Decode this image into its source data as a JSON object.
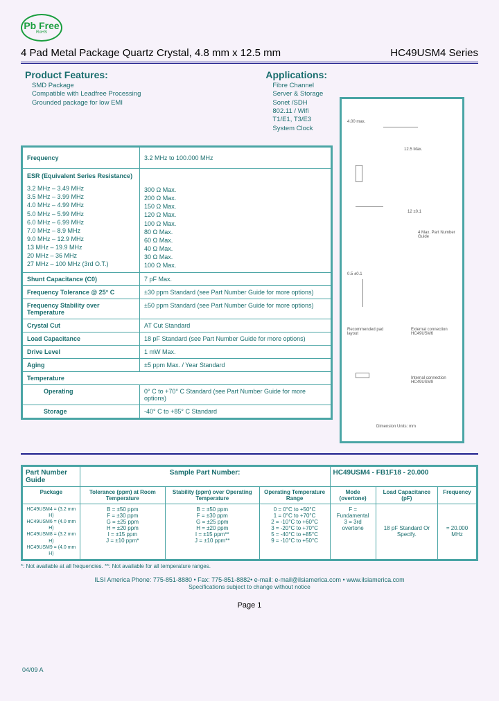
{
  "badge": {
    "line1": "Pb Free",
    "line2": "RoHS"
  },
  "header": {
    "title": "4 Pad Metal Package Quartz Crystal, 4.8 mm x 12.5 mm",
    "series": "HC49USM4 Series"
  },
  "features": {
    "heading": "Product Features:",
    "items": [
      "SMD Package",
      "Compatible with Leadfree Processing",
      "Grounded package for low EMI"
    ]
  },
  "applications": {
    "heading": "Applications:",
    "items": [
      "Fibre Channel",
      "Server & Storage",
      "Sonet /SDH",
      "802.11 / Wifi",
      "T1/E1, T3/E3",
      "System Clock"
    ]
  },
  "specs": {
    "frequency": {
      "label": "Frequency",
      "value": "3.2 MHz to 100.000 MHz"
    },
    "esr": {
      "label": "ESR (Equivalent Series Resistance)",
      "ranges": [
        "3.2 MHz – 3.49 MHz",
        "3.5 MHz – 3.99 MHz",
        "4.0 MHz – 4.99 MHz",
        "5.0 MHz – 5.99 MHz",
        "6.0 MHz – 6.99 MHz",
        "7.0 MHz – 8.9 MHz",
        "9.0 MHz – 12.9 MHz",
        "13 MHz – 19.9 MHz",
        "20 MHz – 36 MHz",
        "27 MHz – 100 MHz (3rd O.T.)"
      ],
      "values": [
        "300 Ω Max.",
        "200 Ω Max.",
        "150 Ω Max.",
        "120 Ω Max.",
        "100 Ω Max.",
        "80 Ω Max.",
        "60 Ω Max.",
        "40 Ω Max.",
        "30 Ω Max.",
        "100 Ω Max."
      ]
    },
    "shunt": {
      "label": "Shunt Capacitance (C0)",
      "value": "7 pF Max."
    },
    "tol25": {
      "label": "Frequency Tolerance @ 25° C",
      "value": "±30 ppm Standard (see Part Number Guide for more options)"
    },
    "stab": {
      "label": "Frequency Stability over Temperature",
      "value": "±50 ppm Standard (see Part Number Guide for more options)"
    },
    "cut": {
      "label": "Crystal Cut",
      "value": "AT Cut Standard"
    },
    "load": {
      "label": "Load Capacitance",
      "value": "18 pF Standard (see Part Number Guide for more options)"
    },
    "drive": {
      "label": "Drive Level",
      "value": "1 mW Max."
    },
    "aging": {
      "label": "Aging",
      "value": "±5 ppm Max. / Year Standard"
    },
    "temp": {
      "label": "Temperature"
    },
    "op": {
      "label": "Operating",
      "value": "0° C to +70° C Standard (see Part Number Guide for more options)"
    },
    "stor": {
      "label": "Storage",
      "value": "-40° C to +85° C Standard"
    }
  },
  "diagram": {
    "labels": [
      "4.00 max.",
      "12.5 Max.",
      "12 ±0.1",
      "4 Max. Part Number Guide",
      "0.5 ±0.1",
      "Recommended pad layout",
      "External connection HC49USM6",
      "Internal connection HC49USM9",
      "Dimension Units: mm"
    ]
  },
  "png": {
    "title": "Part Number Guide",
    "sampleLabel": "Sample Part Number:",
    "sampleValue": "HC49USM4 - FB1F18 - 20.000",
    "headers": [
      "Package",
      "Tolerance (ppm) at Room Temperature",
      "Stability (ppm) over Operating Temperature",
      "Operating Temperature Range",
      "Mode (overtone)",
      "Load Capacitance (pF)",
      "Frequency"
    ],
    "packages": [
      "HC49USM4 = (3.2 mm H)",
      "HC49USM6 = (4.0 mm H)",
      "HC49USM8 = (3.2 mm H)",
      "HC49USM9 = (4.0 mm H)"
    ],
    "tol": [
      "B = ±50 ppm",
      "F = ±30 ppm",
      "G = ±25 ppm",
      "H = ±20 ppm",
      "I = ±15 ppm",
      "J = ±10 ppm*"
    ],
    "stab": [
      "B = ±50 ppm",
      "F = ±30 ppm",
      "G = ±25 ppm",
      "H = ±20 ppm",
      "I = ±15 ppm**",
      "J = ±10 ppm**"
    ],
    "temp": [
      "0 = 0°C to +50°C",
      "1 = 0°C to +70°C",
      "2 = -10°C to +60°C",
      "3 = -20°C to +70°C",
      "5 = -40°C to +85°C",
      "9 = -10°C to +50°C"
    ],
    "mode": [
      "F = Fundamental",
      "3 = 3rd overtone"
    ],
    "loadc": "18 pF Standard Or Specify.",
    "freq": "= 20.000 MHz"
  },
  "footnote": "*: Not available at all frequencies.   **: Not available for all temperature ranges.",
  "footer": {
    "line1": "ILSI America  Phone: 775-851-8880 • Fax: 775-851-8882• e-mail: e-mail@ilsiamerica.com • www.ilsiamerica.com",
    "line2": "Specifications subject to change without notice"
  },
  "rev": "04/09  A",
  "pageNum": "Page 1"
}
